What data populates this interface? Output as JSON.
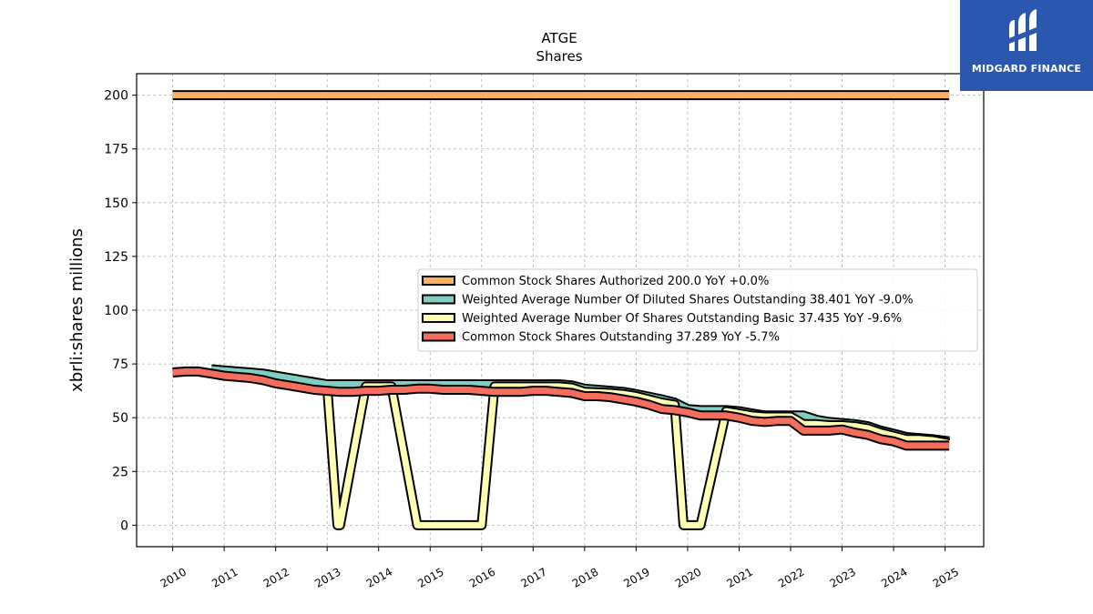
{
  "brand": {
    "name": "MIDGARD FINANCE",
    "bg_color": "#2b58ae",
    "icon": "midgard-logo-icon"
  },
  "chart_data": {
    "type": "line",
    "title": "ATGE",
    "subtitle": "Shares",
    "xlabel": "",
    "ylabel": "xbrli:shares millions",
    "xlim": [
      2009.3,
      2025.75
    ],
    "ylim": [
      -10,
      210
    ],
    "x_ticks": [
      "2010",
      "2011",
      "2012",
      "2013",
      "2014",
      "2015",
      "2016",
      "2017",
      "2018",
      "2019",
      "2020",
      "2021",
      "2022",
      "2023",
      "2024",
      "2025"
    ],
    "y_ticks": [
      0,
      25,
      50,
      75,
      100,
      125,
      150,
      175,
      200
    ],
    "grid": true,
    "legend_position": "center-right",
    "series": [
      {
        "name": "Common Stock Shares Authorized",
        "legend": "Common Stock Shares Authorized  200.0 YoY +0.0%",
        "color": "#fdae61",
        "x": [
          2010.0,
          2025.08
        ],
        "y": [
          200,
          200
        ]
      },
      {
        "name": "Weighted Average Number Of Diluted Shares Outstanding",
        "legend": "Weighted Average Number Of Diluted Shares Outstanding  38.401 YoY -9.0%",
        "color": "#80cdc1",
        "x": [
          2010.75,
          2011.0,
          2011.5,
          2011.75,
          2012.0,
          2012.5,
          2012.75,
          2013.0,
          2013.75,
          2014.0,
          2014.25,
          2014.75,
          2015.0,
          2015.5,
          2015.75,
          2016.0,
          2016.25,
          2016.75,
          2017.0,
          2017.5,
          2017.75,
          2018.0,
          2018.5,
          2018.75,
          2019.0,
          2019.5,
          2019.75,
          2020.0,
          2020.25,
          2020.75,
          2021.0,
          2021.25,
          2021.5,
          2021.75,
          2022.0,
          2022.25,
          2022.5,
          2022.75,
          2023.0,
          2023.25,
          2023.5,
          2023.75,
          2024.0,
          2024.25,
          2024.5,
          2024.75,
          2025.08
        ],
        "y": [
          72.5,
          72.0,
          71.0,
          70.5,
          69.5,
          67.5,
          66.5,
          65.5,
          65.5,
          65.5,
          65.5,
          65.5,
          65.5,
          65.5,
          65.5,
          65.5,
          65.5,
          65.5,
          65.5,
          65.5,
          65.0,
          63.5,
          62.5,
          62.0,
          61.0,
          58.5,
          57.0,
          54.0,
          53.5,
          53.5,
          53.0,
          52.0,
          51.0,
          51.0,
          51.0,
          51.0,
          49.0,
          48.0,
          47.5,
          47.0,
          46.0,
          44.0,
          42.5,
          41.0,
          40.5,
          40.0,
          39.0
        ]
      },
      {
        "name": "Weighted Average Number Of Shares Outstanding Basic",
        "legend": "Weighted Average Number Of Shares Outstanding Basic  37.435 YoY -9.6%",
        "color": "#ffffb3",
        "x": [
          2013.0,
          2013.2,
          2013.25,
          2013.75,
          2014.0,
          2014.25,
          2014.75,
          2015.0,
          2015.5,
          2015.75,
          2016.0,
          2016.25,
          2016.75,
          2017.0,
          2017.5,
          2017.75,
          2018.0,
          2018.5,
          2018.75,
          2019.0,
          2019.5,
          2019.75,
          2019.92,
          2020.0,
          2020.25,
          2020.75,
          2021.0,
          2021.25,
          2021.5,
          2021.75,
          2022.0,
          2022.25,
          2022.5,
          2022.75,
          2023.0,
          2023.25,
          2023.5,
          2023.75,
          2024.0,
          2024.25,
          2024.5,
          2024.75,
          2025.08
        ],
        "y": [
          64.5,
          0,
          0,
          64.5,
          64.5,
          64.5,
          0,
          0,
          0,
          0,
          0,
          64.5,
          64.5,
          64.5,
          64.5,
          64.0,
          62.0,
          61.5,
          61.0,
          60.0,
          57.0,
          56.0,
          0,
          0,
          0,
          53.0,
          52.0,
          51.0,
          50.5,
          50.5,
          50.5,
          47.0,
          47.0,
          46.5,
          46.5,
          46.0,
          45.0,
          43.0,
          41.5,
          40.0,
          40.0,
          39.5,
          38.0
        ]
      },
      {
        "name": "Common Stock Shares Outstanding",
        "legend": "Common Stock Shares Outstanding  37.289 YoY -5.7%",
        "color": "#f46d5d",
        "x": [
          2010.0,
          2010.25,
          2010.5,
          2010.75,
          2011.0,
          2011.25,
          2011.5,
          2011.75,
          2012.0,
          2012.25,
          2012.5,
          2012.75,
          2013.0,
          2013.25,
          2013.5,
          2013.75,
          2014.0,
          2014.25,
          2014.5,
          2014.75,
          2015.0,
          2015.25,
          2015.5,
          2015.75,
          2016.0,
          2016.25,
          2016.5,
          2016.75,
          2017.0,
          2017.25,
          2017.5,
          2017.75,
          2018.0,
          2018.25,
          2018.5,
          2018.75,
          2019.0,
          2019.25,
          2019.5,
          2019.75,
          2020.0,
          2020.25,
          2020.5,
          2020.75,
          2021.0,
          2021.25,
          2021.5,
          2021.75,
          2022.0,
          2022.25,
          2022.5,
          2022.75,
          2023.0,
          2023.25,
          2023.5,
          2023.75,
          2024.0,
          2024.25,
          2024.5,
          2024.75,
          2025.08
        ],
        "y": [
          71.0,
          71.5,
          71.5,
          70.5,
          69.5,
          69.0,
          68.5,
          67.5,
          66.0,
          65.0,
          64.0,
          63.0,
          62.5,
          62.0,
          62.0,
          62.5,
          62.5,
          63.0,
          63.0,
          63.5,
          63.5,
          63.0,
          63.0,
          63.0,
          62.5,
          62.0,
          62.0,
          62.0,
          62.5,
          62.5,
          62.0,
          61.5,
          60.0,
          60.0,
          59.5,
          58.5,
          57.5,
          56.0,
          54.0,
          53.5,
          52.5,
          51.0,
          51.0,
          51.0,
          50.0,
          48.5,
          48.0,
          48.5,
          48.5,
          44.0,
          44.0,
          44.0,
          44.5,
          43.0,
          42.0,
          40.0,
          39.0,
          37.0,
          37.0,
          37.0,
          37.0
        ]
      }
    ]
  }
}
